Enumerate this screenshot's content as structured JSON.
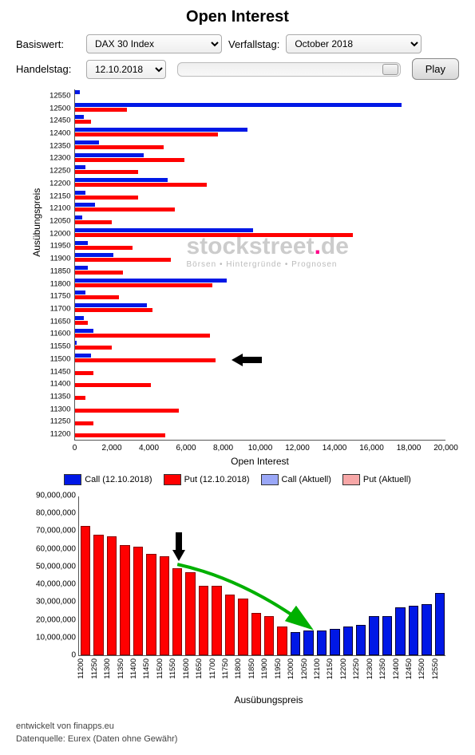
{
  "title": "Open Interest",
  "controls": {
    "basiswert_label": "Basiswert:",
    "basiswert_value": "DAX 30 Index",
    "verfallstag_label": "Verfallstag:",
    "verfallstag_value": "October 2018",
    "handelstag_label": "Handelstag:",
    "handelstag_value": "12.10.2018",
    "play_label": "Play"
  },
  "colors": {
    "call": "#0018e6",
    "put": "#ff0000",
    "call_light": "#9aa7f7",
    "put_light": "#f7a7a7",
    "axis": "#555555",
    "bg": "#ffffff",
    "watermark": "#cfcfcf"
  },
  "hchart": {
    "ylabel": "Ausübungspreis",
    "xlabel": "Open Interest",
    "xmax": 20000,
    "xticks": [
      0,
      2000,
      4000,
      6000,
      8000,
      10000,
      12000,
      14000,
      16000,
      18000,
      20000
    ],
    "xtick_labels": [
      "0",
      "2,000",
      "4,000",
      "6,000",
      "8,000",
      "10,000",
      "12,000",
      "14,000",
      "16,000",
      "18,000",
      "20,000"
    ],
    "rows": [
      {
        "strike": "12550",
        "call": 300,
        "put": 0
      },
      {
        "strike": "12500",
        "call": 17600,
        "put": 2800
      },
      {
        "strike": "12450",
        "call": 500,
        "put": 900
      },
      {
        "strike": "12400",
        "call": 9300,
        "put": 7700
      },
      {
        "strike": "12350",
        "call": 1300,
        "put": 4800
      },
      {
        "strike": "12300",
        "call": 3700,
        "put": 5900
      },
      {
        "strike": "12250",
        "call": 600,
        "put": 3400
      },
      {
        "strike": "12200",
        "call": 5000,
        "put": 7100
      },
      {
        "strike": "12150",
        "call": 600,
        "put": 3400
      },
      {
        "strike": "12100",
        "call": 1100,
        "put": 5400
      },
      {
        "strike": "12050",
        "call": 400,
        "put": 2000
      },
      {
        "strike": "12000",
        "call": 9600,
        "put": 15000
      },
      {
        "strike": "11950",
        "call": 700,
        "put": 3100
      },
      {
        "strike": "11900",
        "call": 2100,
        "put": 5200
      },
      {
        "strike": "11850",
        "call": 700,
        "put": 2600
      },
      {
        "strike": "11800",
        "call": 8200,
        "put": 7400
      },
      {
        "strike": "11750",
        "call": 600,
        "put": 2400
      },
      {
        "strike": "11700",
        "call": 3900,
        "put": 4200
      },
      {
        "strike": "11650",
        "call": 500,
        "put": 700
      },
      {
        "strike": "11600",
        "call": 1000,
        "put": 7300
      },
      {
        "strike": "11550",
        "call": 100,
        "put": 2000
      },
      {
        "strike": "11500",
        "call": 900,
        "put": 7600
      },
      {
        "strike": "11450",
        "call": 0,
        "put": 1000
      },
      {
        "strike": "11400",
        "call": 0,
        "put": 4100
      },
      {
        "strike": "11350",
        "call": 0,
        "put": 600
      },
      {
        "strike": "11300",
        "call": 0,
        "put": 5600
      },
      {
        "strike": "11250",
        "call": 0,
        "put": 1000
      },
      {
        "strike": "11200",
        "call": 0,
        "put": 4900
      }
    ],
    "arrow_strike": "11500"
  },
  "legend": [
    {
      "label": "Call (12.10.2018)",
      "color": "#0018e6"
    },
    {
      "label": "Put (12.10.2018)",
      "color": "#ff0000"
    },
    {
      "label": "Call (Aktuell)",
      "color": "#9aa7f7"
    },
    {
      "label": "Put (Aktuell)",
      "color": "#f7a7a7"
    }
  ],
  "vchart": {
    "xlabel": "Ausübungspreis",
    "ymax": 90000000,
    "yticks": [
      0,
      10000000,
      20000000,
      30000000,
      40000000,
      50000000,
      60000000,
      70000000,
      80000000,
      90000000
    ],
    "ytick_labels": [
      "0",
      "10,000,000",
      "20,000,000",
      "30,000,000",
      "40,000,000",
      "50,000,000",
      "60,000,000",
      "70,000,000",
      "80,000,000",
      "90,000,000"
    ],
    "bars": [
      {
        "strike": "11200",
        "val": 73000000,
        "type": "put"
      },
      {
        "strike": "11250",
        "val": 68000000,
        "type": "put"
      },
      {
        "strike": "11300",
        "val": 67000000,
        "type": "put"
      },
      {
        "strike": "11350",
        "val": 62000000,
        "type": "put"
      },
      {
        "strike": "11400",
        "val": 61000000,
        "type": "put"
      },
      {
        "strike": "11450",
        "val": 57000000,
        "type": "put"
      },
      {
        "strike": "11500",
        "val": 56000000,
        "type": "put"
      },
      {
        "strike": "11550",
        "val": 49000000,
        "type": "put"
      },
      {
        "strike": "11600",
        "val": 47000000,
        "type": "put"
      },
      {
        "strike": "11650",
        "val": 39000000,
        "type": "put"
      },
      {
        "strike": "11700",
        "val": 39000000,
        "type": "put"
      },
      {
        "strike": "11750",
        "val": 34000000,
        "type": "put"
      },
      {
        "strike": "11800",
        "val": 32000000,
        "type": "put"
      },
      {
        "strike": "11850",
        "val": 24000000,
        "type": "put"
      },
      {
        "strike": "11900",
        "val": 22000000,
        "type": "put"
      },
      {
        "strike": "11950",
        "val": 16000000,
        "type": "put"
      },
      {
        "strike": "12000",
        "val": 13000000,
        "type": "call"
      },
      {
        "strike": "12050",
        "val": 14000000,
        "type": "call"
      },
      {
        "strike": "12100",
        "val": 14000000,
        "type": "call"
      },
      {
        "strike": "12150",
        "val": 15000000,
        "type": "call"
      },
      {
        "strike": "12200",
        "val": 16000000,
        "type": "call"
      },
      {
        "strike": "12250",
        "val": 17000000,
        "type": "call"
      },
      {
        "strike": "12300",
        "val": 22000000,
        "type": "call"
      },
      {
        "strike": "12350",
        "val": 22000000,
        "type": "call"
      },
      {
        "strike": "12400",
        "val": 27000000,
        "type": "call"
      },
      {
        "strike": "12450",
        "val": 28000000,
        "type": "call"
      },
      {
        "strike": "12500",
        "val": 29000000,
        "type": "call"
      },
      {
        "strike": "12550",
        "val": 35000000,
        "type": "call"
      }
    ],
    "arrow_strike": "11550"
  },
  "watermark": {
    "line1_a": "stockstreet",
    "line1_b": "de",
    "line2": "Börsen • Hintergründe • Prognosen"
  },
  "footer": {
    "line1": "entwickelt von finapps.eu",
    "line2": "Datenquelle: Eurex (Daten ohne Gewähr)"
  }
}
